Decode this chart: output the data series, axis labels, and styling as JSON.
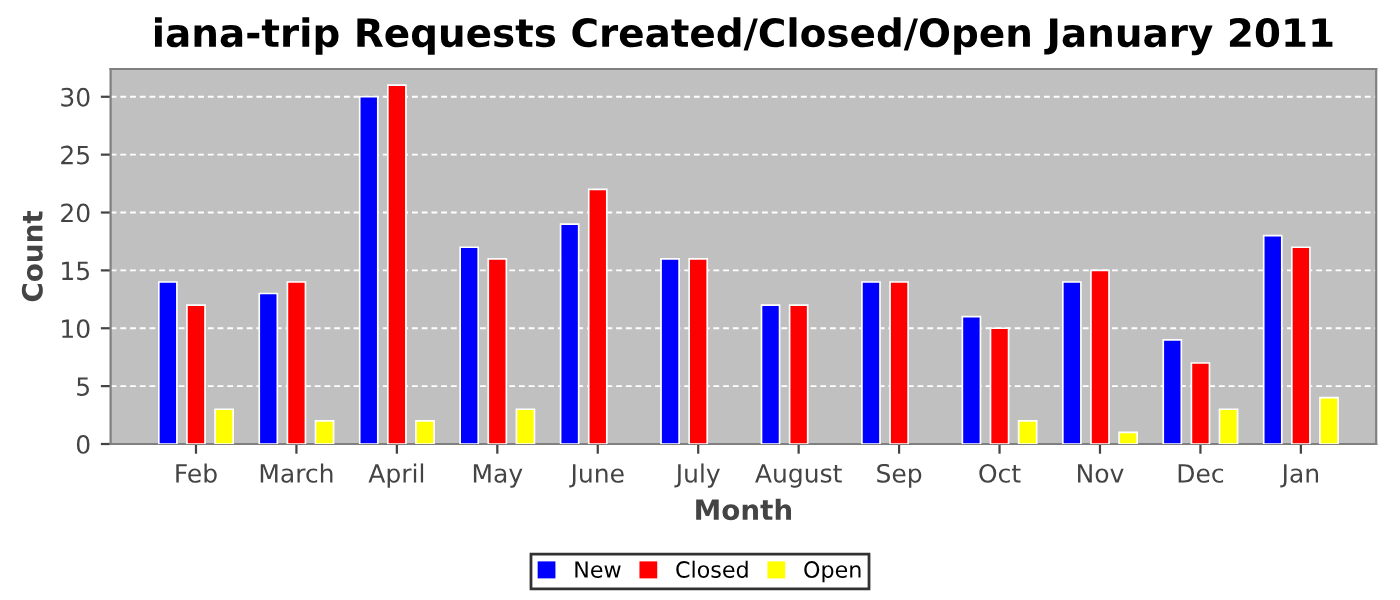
{
  "chart_data": {
    "type": "bar",
    "title": "iana-trip Requests Created/Closed/Open January 2011",
    "xlabel": "Month",
    "ylabel": "Count",
    "categories": [
      "Feb",
      "March",
      "April",
      "May",
      "June",
      "July",
      "August",
      "Sep",
      "Oct",
      "Nov",
      "Dec",
      "Jan"
    ],
    "series": [
      {
        "name": "New",
        "color": "#0000ff",
        "values": [
          14,
          13,
          30,
          17,
          19,
          16,
          12,
          14,
          11,
          14,
          9,
          18
        ]
      },
      {
        "name": "Closed",
        "color": "#ff0000",
        "values": [
          12,
          14,
          31,
          16,
          22,
          16,
          12,
          14,
          10,
          15,
          7,
          17
        ]
      },
      {
        "name": "Open",
        "color": "#ffff00",
        "values": [
          3,
          2,
          2,
          3,
          0,
          0,
          0,
          0,
          2,
          1,
          3,
          4
        ]
      }
    ],
    "ylim": [
      0,
      32.4
    ],
    "yticks": [
      0,
      5,
      10,
      15,
      20,
      25,
      30
    ],
    "grid": "y",
    "legend": "bottom"
  }
}
